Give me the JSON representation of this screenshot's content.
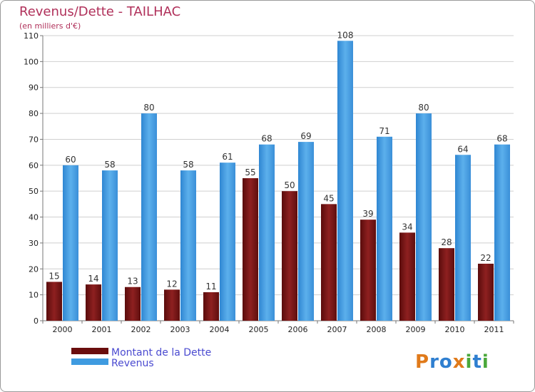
{
  "chart_data": {
    "type": "bar",
    "title": "Revenus/Dette - TAILHAC",
    "subtitle": "(en milliers d'€)",
    "categories": [
      "2000",
      "2001",
      "2002",
      "2003",
      "2004",
      "2005",
      "2006",
      "2007",
      "2008",
      "2009",
      "2010",
      "2011"
    ],
    "series": [
      {
        "name": "Montant de la Dette",
        "color": "#7a1212",
        "values": [
          15,
          14,
          13,
          12,
          11,
          55,
          50,
          45,
          39,
          34,
          28,
          22
        ]
      },
      {
        "name": "Revenus",
        "color": "#4fa3e3",
        "values": [
          60,
          58,
          80,
          58,
          61,
          68,
          69,
          108,
          71,
          80,
          64,
          68
        ]
      }
    ],
    "ylim": [
      0,
      110
    ],
    "yticks": [
      0,
      10,
      20,
      30,
      40,
      50,
      60,
      70,
      80,
      90,
      100,
      110
    ],
    "grid": true,
    "legend_position": "bottom-left"
  },
  "brand": {
    "text": "Proxiti",
    "letter_colors": [
      "#e07a1a",
      "#2f7fd0",
      "#2f7fd0",
      "#e07a1a",
      "#4aa83a",
      "#2f7fd0",
      "#4aa83a"
    ]
  }
}
